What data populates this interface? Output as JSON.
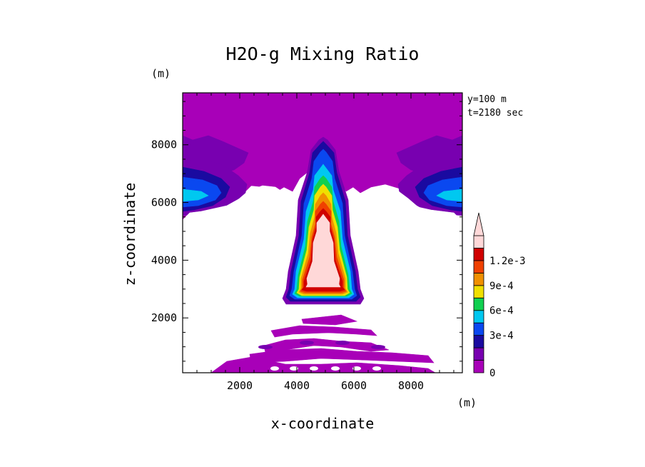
{
  "chart_data": {
    "type": "heatmap",
    "title": "H2O-g Mixing Ratio",
    "xlabel": "x-coordinate",
    "ylabel": "z-coordinate",
    "x_unit": "(m)",
    "y_unit": "(m)",
    "annotations": [
      "y=100 m",
      "t=2180 sec"
    ],
    "xlim": [
      0,
      9800
    ],
    "ylim": [
      100,
      9800
    ],
    "x_ticks": [
      2000,
      4000,
      6000,
      8000
    ],
    "y_ticks": [
      2000,
      4000,
      6000,
      8000
    ],
    "x_tick_labels": [
      "2000",
      "4000",
      "6000",
      "8000"
    ],
    "y_tick_labels": [
      "2000",
      "4000",
      "6000",
      "8000"
    ],
    "colorbar": {
      "levels": [
        0,
        0.00015,
        0.0003,
        0.00045,
        0.0006,
        0.00075,
        0.0009,
        0.00105,
        0.0012
      ],
      "colors": [
        "#a800b8",
        "#7800b0",
        "#1a0aa0",
        "#0a48f0",
        "#00c8f0",
        "#10d050",
        "#f0e000",
        "#f09000",
        "#f04000",
        "#d00000",
        "#ffd8d8"
      ],
      "tick_values": [
        0,
        0.0003,
        0.0006,
        0.0009,
        0.0012
      ],
      "tick_labels": [
        "0",
        "3e-4",
        "6e-4",
        "9e-4",
        "1.2e-3"
      ],
      "extend": "max"
    },
    "regions": [
      {
        "feature": "upper moist layer",
        "x_range": [
          0,
          9800
        ],
        "z_range": [
          5400,
          9800
        ],
        "value_range": [
          0,
          0.00045
        ]
      },
      {
        "feature": "updraft core",
        "x_center": 5000,
        "z_range": [
          2600,
          8100
        ],
        "peak_value": 0.0012
      },
      {
        "feature": "low-level bands",
        "x_range": [
          1000,
          9000
        ],
        "z_range": [
          100,
          2100
        ],
        "value_range": [
          0,
          0.00015
        ]
      }
    ]
  }
}
